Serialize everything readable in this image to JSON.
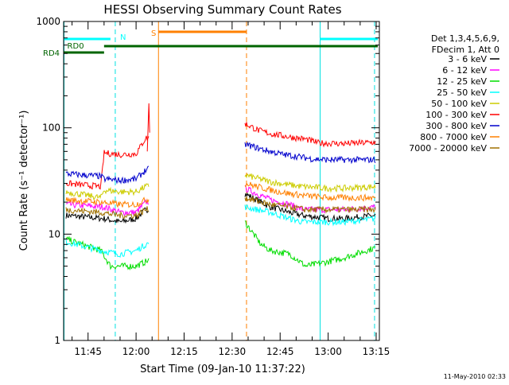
{
  "chart_data": {
    "type": "line",
    "title": "HESSI Observing Summary Count Rates",
    "xlabel": "Start Time (09-Jan-10 11:37:22)",
    "ylabel": "Count Rate (s⁻¹ detector⁻¹)",
    "y_scale": "log",
    "ylim": [
      1,
      1000
    ],
    "xlim": [
      "11:37:22",
      "13:16:00"
    ],
    "x_ticks": [
      "11:45",
      "12:00",
      "12:15",
      "12:30",
      "12:45",
      "13:00",
      "13:15"
    ],
    "y_ticks": [
      "1",
      "10",
      "100",
      "1000"
    ],
    "legend": {
      "position": "right",
      "header": [
        "Det 1,3,4,5,6,9,",
        "FDecim 1, Att 0"
      ]
    },
    "series": [
      {
        "name": "3 - 6 keV",
        "color": "#000000",
        "points": [
          [
            "11:38",
            15
          ],
          [
            "11:50",
            14
          ],
          [
            "11:55",
            13
          ],
          [
            "12:00",
            14
          ],
          [
            "12:03",
            17
          ],
          [
            "12:34",
            24
          ],
          [
            "12:42",
            18
          ],
          [
            "12:48",
            16
          ],
          [
            "12:52",
            15
          ],
          [
            "13:00",
            14
          ],
          [
            "13:05",
            14
          ],
          [
            "13:15",
            15
          ]
        ]
      },
      {
        "name": "6 - 12 keV",
        "color": "#ff00ff",
        "points": [
          [
            "11:38",
            19
          ],
          [
            "11:50",
            18
          ],
          [
            "11:55",
            16
          ],
          [
            "12:00",
            16
          ],
          [
            "12:03",
            20
          ],
          [
            "12:34",
            27
          ],
          [
            "12:42",
            21
          ],
          [
            "12:48",
            19
          ],
          [
            "12:52",
            17
          ],
          [
            "13:00",
            17
          ],
          [
            "13:05",
            17
          ],
          [
            "13:15",
            18
          ]
        ]
      },
      {
        "name": "12 - 25 keV",
        "color": "#00dd00",
        "points": [
          [
            "11:38",
            9
          ],
          [
            "11:49",
            7
          ],
          [
            "11:52",
            5
          ],
          [
            "12:00",
            5
          ],
          [
            "12:03",
            5.5
          ],
          [
            "12:34",
            13
          ],
          [
            "12:39",
            8
          ],
          [
            "12:42",
            7
          ],
          [
            "12:48",
            6.5
          ],
          [
            "12:53",
            5
          ],
          [
            "13:00",
            5.5
          ],
          [
            "13:05",
            6
          ],
          [
            "13:15",
            7.5
          ]
        ]
      },
      {
        "name": "25 - 50 keV",
        "color": "#00ffff",
        "points": [
          [
            "11:38",
            8.5
          ],
          [
            "11:49",
            7
          ],
          [
            "11:55",
            6.5
          ],
          [
            "12:00",
            7
          ],
          [
            "12:03",
            8
          ],
          [
            "12:34",
            18
          ],
          [
            "12:42",
            16
          ],
          [
            "12:48",
            14
          ],
          [
            "12:52",
            13
          ],
          [
            "13:00",
            13
          ],
          [
            "13:05",
            13
          ],
          [
            "13:15",
            14
          ]
        ]
      },
      {
        "name": "50 - 100 keV",
        "color": "#cccc00",
        "points": [
          [
            "11:38",
            25
          ],
          [
            "11:49",
            22
          ],
          [
            "11:50",
            26
          ],
          [
            "11:55",
            25
          ],
          [
            "12:00",
            25
          ],
          [
            "12:03",
            28
          ],
          [
            "12:34",
            36
          ],
          [
            "12:42",
            31
          ],
          [
            "12:48",
            29
          ],
          [
            "12:52",
            28
          ],
          [
            "13:00",
            27
          ],
          [
            "13:05",
            27
          ],
          [
            "13:15",
            28
          ]
        ]
      },
      {
        "name": "100 - 300 keV",
        "color": "#ff0000",
        "points": [
          [
            "11:38",
            30
          ],
          [
            "11:49",
            28
          ],
          [
            "11:50",
            58
          ],
          [
            "11:55",
            56
          ],
          [
            "12:00",
            57
          ],
          [
            "12:03",
            80
          ],
          [
            "12:34",
            110
          ],
          [
            "12:38",
            95
          ],
          [
            "12:42",
            88
          ],
          [
            "12:48",
            82
          ],
          [
            "12:53",
            78
          ],
          [
            "12:57",
            72
          ],
          [
            "13:05",
            71
          ],
          [
            "13:15",
            73
          ]
        ]
      },
      {
        "name": "300 - 800 keV",
        "color": "#0000cc",
        "points": [
          [
            "11:38",
            37
          ],
          [
            "11:49",
            35
          ],
          [
            "11:50",
            33
          ],
          [
            "11:55",
            32
          ],
          [
            "12:00",
            33
          ],
          [
            "12:03",
            40
          ],
          [
            "12:34",
            70
          ],
          [
            "12:40",
            62
          ],
          [
            "12:46",
            56
          ],
          [
            "12:50",
            54
          ],
          [
            "12:55",
            51
          ],
          [
            "13:00",
            50
          ],
          [
            "13:15",
            50
          ]
        ]
      },
      {
        "name": "800 - 7000 keV",
        "color": "#ff8000",
        "points": [
          [
            "11:38",
            21
          ],
          [
            "11:49",
            20
          ],
          [
            "11:55",
            19
          ],
          [
            "12:00",
            19
          ],
          [
            "12:03",
            21
          ],
          [
            "12:34",
            30
          ],
          [
            "12:42",
            26
          ],
          [
            "12:48",
            24
          ],
          [
            "12:53",
            23
          ],
          [
            "13:00",
            22
          ],
          [
            "13:15",
            22
          ]
        ]
      },
      {
        "name": "7000 - 20000 keV",
        "color": "#a07000",
        "points": [
          [
            "11:38",
            17
          ],
          [
            "11:49",
            16
          ],
          [
            "11:55",
            15
          ],
          [
            "12:00",
            15
          ],
          [
            "12:03",
            17
          ],
          [
            "12:34",
            22
          ],
          [
            "12:42",
            19
          ],
          [
            "12:48",
            18
          ],
          [
            "12:53",
            17
          ],
          [
            "13:00",
            17
          ],
          [
            "13:15",
            17
          ]
        ]
      }
    ],
    "vertical_markers": [
      {
        "time": "11:37:30",
        "color": "#00e0e0",
        "style": "solid"
      },
      {
        "time": "11:53:30",
        "color": "#00e0e0",
        "style": "dashed"
      },
      {
        "time": "12:07:00",
        "color": "#ff8000",
        "style": "solid"
      },
      {
        "time": "12:34:30",
        "color": "#ff8000",
        "style": "dashed"
      },
      {
        "time": "12:57:30",
        "color": "#00e0e0",
        "style": "solid"
      },
      {
        "time": "13:14:30",
        "color": "#00e0e0",
        "style": "dashed"
      }
    ],
    "status_bars": [
      {
        "label": "N",
        "color": "#00ffff",
        "level": 1,
        "spans": [
          [
            "11:37:22",
            "11:52:00"
          ],
          [
            "12:57:30",
            "13:15:30"
          ]
        ]
      },
      {
        "label": "S",
        "color": "#ff8000",
        "level": 0,
        "spans": [
          [
            "12:07:00",
            "12:34:30"
          ]
        ]
      },
      {
        "label": "RD0",
        "color": "#006400",
        "level": 2,
        "spans": [
          [
            "11:50:00",
            "13:15:30"
          ]
        ]
      },
      {
        "label": "RD4",
        "color": "#006400",
        "level": 3,
        "spans": [
          [
            "11:37:22",
            "11:50:00"
          ]
        ]
      }
    ],
    "annotations": [
      {
        "text": "N",
        "color": "#00ffff"
      },
      {
        "text": "S",
        "color": "#ff8000"
      },
      {
        "text": "RD0",
        "color": "#006400"
      },
      {
        "text": "RD4",
        "color": "#006400"
      }
    ],
    "footer_timestamp": "11-May-2010 02:33"
  }
}
